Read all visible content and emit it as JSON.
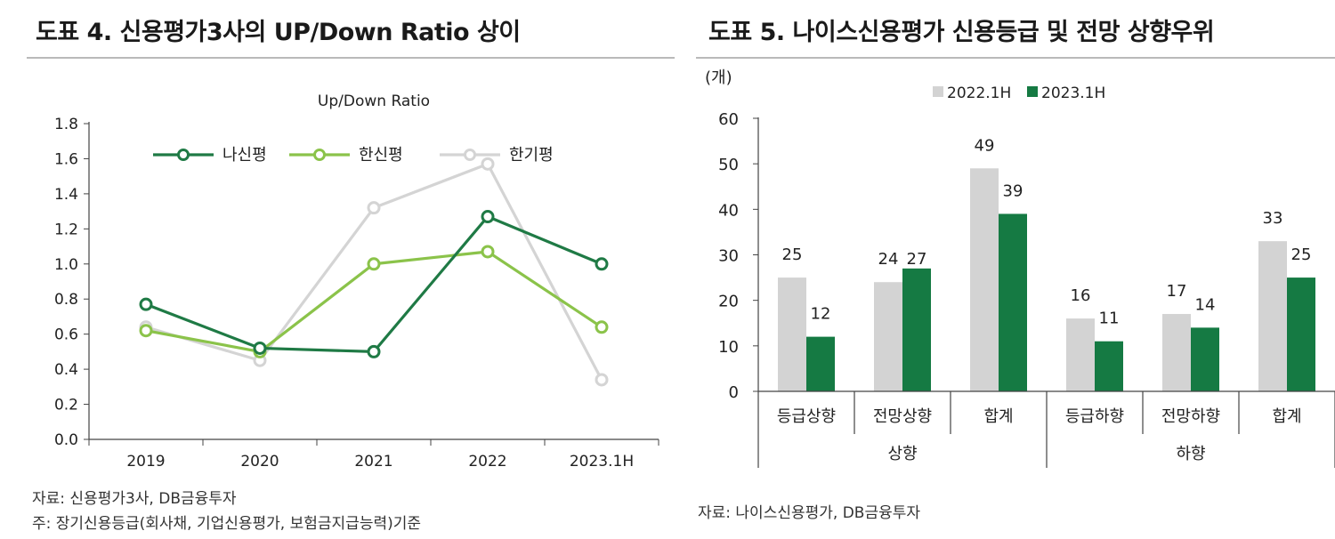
{
  "left_panel": {
    "title": "도표 4. 신용평가3사의 UP/Down Ratio 상이",
    "source": "자료: 신용평가3사, DB금융투자",
    "note": "주: 장기신용등급(회사채, 기업신용평가, 보험금지급능력)기준"
  },
  "right_panel": {
    "title": "도표 5. 나이스신용평가 신용등급 및 전망 상향우위",
    "source": "자료: 나이스신용평가, DB금융투자"
  },
  "chart_data": [
    {
      "type": "line",
      "title": "Up/Down Ratio",
      "xlabel": "",
      "ylabel": "",
      "categories": [
        "2019",
        "2020",
        "2021",
        "2022",
        "2023.1H"
      ],
      "ylim": [
        0,
        1.8
      ],
      "yticks": [
        "0.0",
        "0.2",
        "0.4",
        "0.6",
        "0.8",
        "1.0",
        "1.2",
        "1.4",
        "1.6",
        "1.8"
      ],
      "legend_position": "top",
      "series": [
        {
          "name": "나신평",
          "color": "#1f7a45",
          "values": [
            0.77,
            0.52,
            0.5,
            1.27,
            1.0
          ]
        },
        {
          "name": "한신평",
          "color": "#8bc34a",
          "values": [
            0.62,
            0.5,
            1.0,
            1.07,
            0.64
          ]
        },
        {
          "name": "한기평",
          "color": "#d4d4d4",
          "values": [
            0.64,
            0.45,
            1.32,
            1.57,
            0.34
          ]
        }
      ]
    },
    {
      "type": "bar",
      "title": "",
      "unit_label": "(개)",
      "xlabel": "",
      "ylabel": "",
      "categories": [
        "등급상향",
        "전망상향",
        "합계",
        "등급하향",
        "전망하향",
        "합계"
      ],
      "groups": [
        {
          "label": "상향",
          "span": [
            0,
            2
          ]
        },
        {
          "label": "하향",
          "span": [
            3,
            5
          ]
        }
      ],
      "ylim": [
        0,
        60
      ],
      "yticks": [
        "0",
        "10",
        "20",
        "30",
        "40",
        "50",
        "60"
      ],
      "legend_position": "top",
      "series": [
        {
          "name": "2022.1H",
          "color": "#d3d3d3",
          "values": [
            25,
            24,
            49,
            16,
            17,
            33
          ]
        },
        {
          "name": "2023.1H",
          "color": "#157a43",
          "values": [
            12,
            27,
            39,
            11,
            14,
            25
          ]
        }
      ]
    }
  ]
}
